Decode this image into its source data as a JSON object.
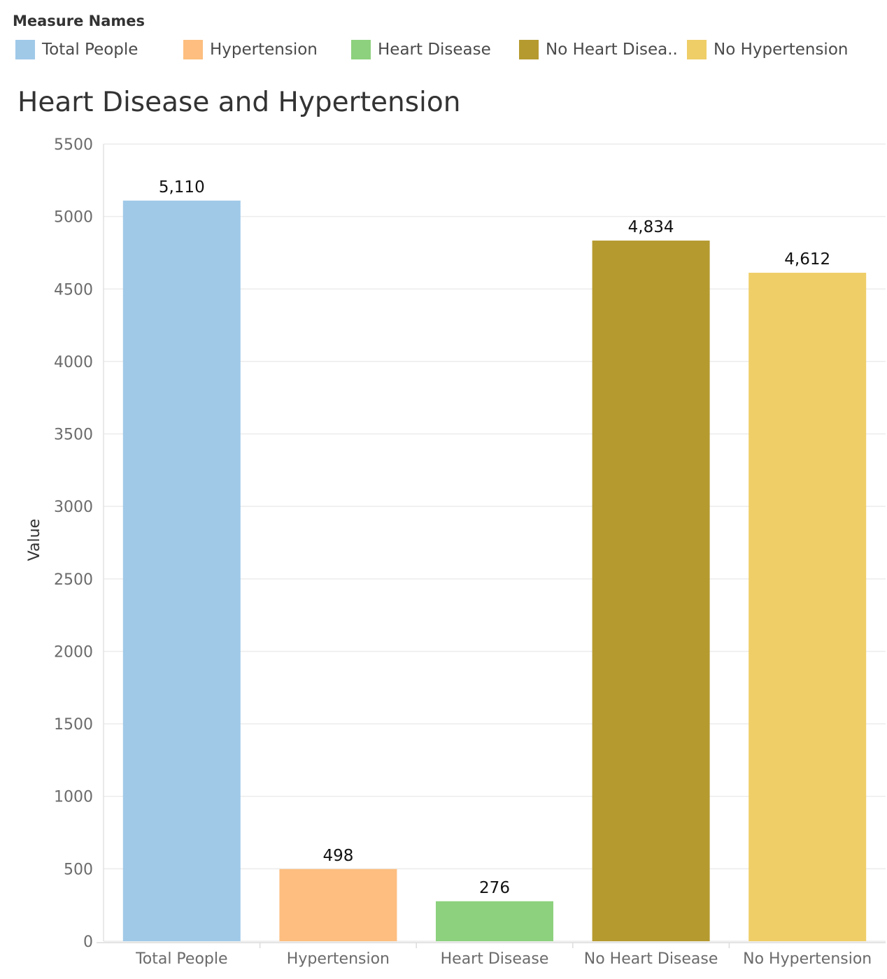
{
  "legend": {
    "title": "Measure Names",
    "items": [
      {
        "label": "Total People",
        "color": "#a0c9e8"
      },
      {
        "label": "Hypertension",
        "color": "#fdbe7f"
      },
      {
        "label": "Heart Disease",
        "color": "#8dd17e"
      },
      {
        "label": "No Heart Disea..",
        "color": "#b59a2f"
      },
      {
        "label": "No Hypertension",
        "color": "#efce68"
      }
    ]
  },
  "chart_data": {
    "type": "bar",
    "title": "Heart Disease and Hypertension",
    "ylabel": "Value",
    "xlabel": "",
    "categories": [
      "Total People",
      "Hypertension",
      "Heart Disease",
      "No Heart Disease",
      "No Hypertension"
    ],
    "values": [
      5110,
      498,
      276,
      4834,
      4612
    ],
    "value_labels": [
      "5,110",
      "498",
      "276",
      "4,834",
      "4,612"
    ],
    "colors": [
      "#a0c9e8",
      "#fdbe7f",
      "#8dd17e",
      "#b59a2f",
      "#efce68"
    ],
    "ylim": [
      0,
      5500
    ],
    "yticks": [
      0,
      500,
      1000,
      1500,
      2000,
      2500,
      3000,
      3500,
      4000,
      4500,
      5000,
      5500
    ],
    "grid": true
  }
}
